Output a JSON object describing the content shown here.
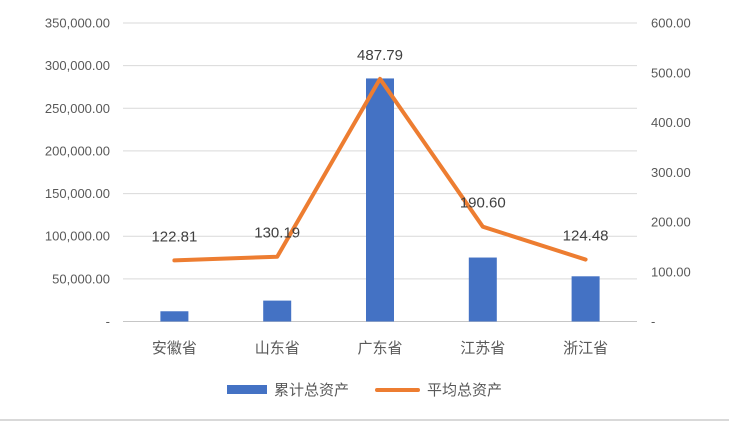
{
  "chart_data": {
    "type": "bar",
    "subtype": "combo-bar-line-dual-axis",
    "title": "",
    "categories": [
      "安徽省",
      "山东省",
      "广东省",
      "江苏省",
      "浙江省"
    ],
    "series": [
      {
        "name": "累计总资产",
        "render": "bar",
        "axis": "left",
        "color": "#4472C4",
        "values": [
          12000,
          24500,
          285000,
          75000,
          53000
        ]
      },
      {
        "name": "平均总资产",
        "render": "line",
        "axis": "right",
        "color": "#ED7D31",
        "values": [
          122.81,
          130.19,
          487.79,
          190.6,
          124.48
        ],
        "data_labels": [
          "122.81",
          "130.19",
          "487.79",
          "190.60",
          "124.48"
        ]
      }
    ],
    "left_axis": {
      "min": 0,
      "max": 350000,
      "step": 50000,
      "tick_labels": [
        "350,000.00",
        "300,000.00",
        "250,000.00",
        "200,000.00",
        "150,000.00",
        "100,000.00",
        "50,000.00",
        "-"
      ]
    },
    "right_axis": {
      "min": 0,
      "max": 600,
      "step": 100,
      "tick_labels": [
        "600.00",
        "500.00",
        "400.00",
        "300.00",
        "200.00",
        "100.00",
        "-"
      ]
    },
    "grid": true,
    "legend_position": "bottom",
    "colors": {
      "gridline": "#d9d9d9",
      "baseline": "#c6c6c6",
      "axis_text": "#595959",
      "data_label_text": "#404040"
    }
  }
}
